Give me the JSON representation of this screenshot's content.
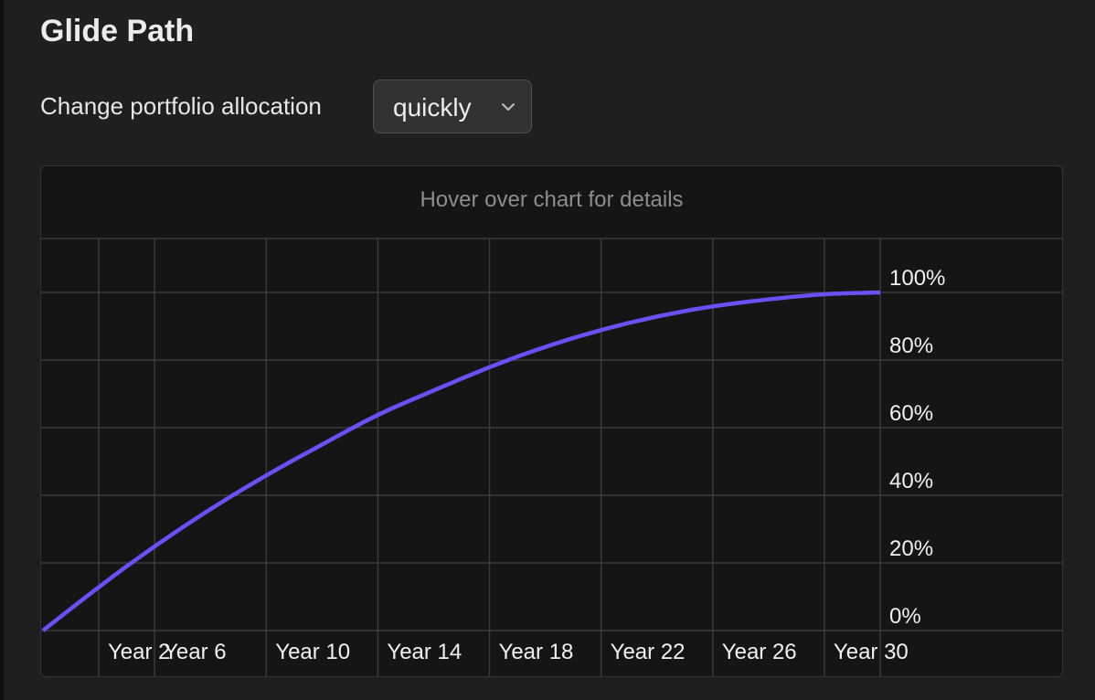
{
  "header": {
    "title": "Glide Path"
  },
  "allocation": {
    "label": "Change portfolio allocation",
    "selected": "quickly"
  },
  "chart": {
    "hint": "Hover over chart for details"
  },
  "colors": {
    "line": "#6a50f5",
    "grid": "#3a3a3a",
    "background": "#151515"
  },
  "icons": {
    "dropdown": "chevron-down-icon"
  },
  "chart_data": {
    "type": "line",
    "x_tick_labels": [
      "Year 2",
      "Year 6",
      "Year 10",
      "Year 14",
      "Year 18",
      "Year 22",
      "Year 26",
      "Year 30"
    ],
    "y_tick_labels": [
      "0%",
      "20%",
      "40%",
      "60%",
      "80%",
      "100%"
    ],
    "xlim": [
      0,
      30
    ],
    "ylim": [
      0,
      100
    ],
    "grid": true,
    "y_axis_side": "right",
    "series": [
      {
        "x": [
          0,
          2,
          4,
          6,
          8,
          10,
          12,
          14,
          16,
          18,
          20,
          22,
          24,
          26,
          28,
          30
        ],
        "y": [
          0,
          13,
          25,
          36,
          46,
          55,
          64,
          71,
          78,
          84,
          89,
          93,
          96,
          98,
          99.6,
          100
        ]
      }
    ]
  }
}
